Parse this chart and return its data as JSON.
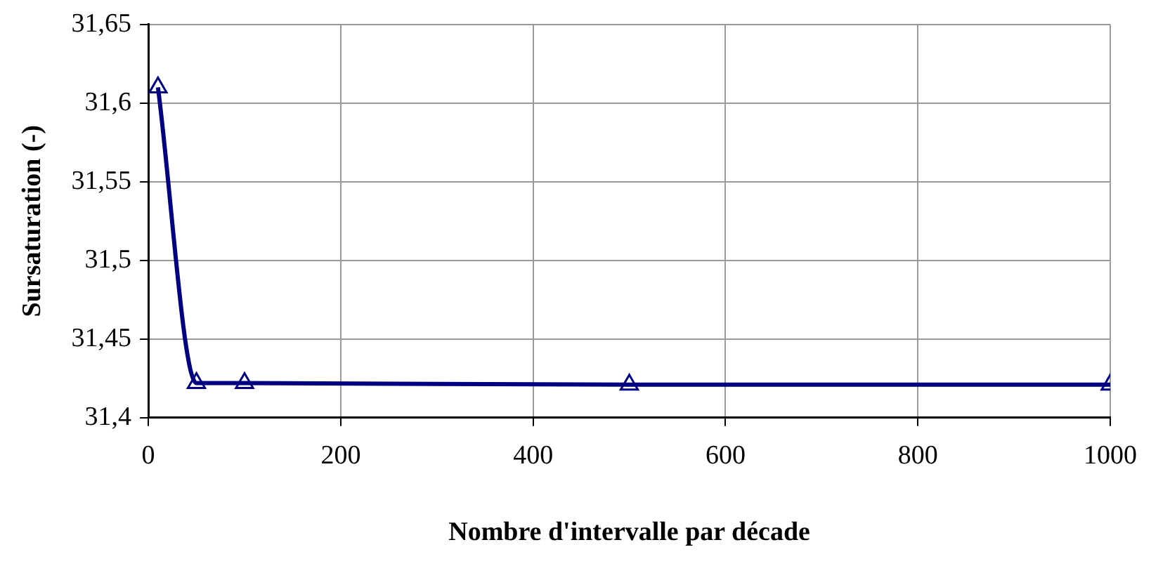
{
  "chart_data": {
    "type": "line",
    "xlabel": "Nombre d'intervalle par décade",
    "ylabel": "Sursaturation (-)",
    "x": [
      10,
      50,
      100,
      500,
      1000
    ],
    "series": [
      {
        "color": "#000080",
        "values": [
          31.61,
          31.422,
          31.422,
          31.421,
          31.421
        ]
      }
    ],
    "xlim": [
      0,
      1000
    ],
    "xticks": [
      0,
      200,
      400,
      600,
      800,
      1000
    ],
    "ylim": [
      31.4,
      31.65
    ],
    "yticks": [
      {
        "value": 31.4,
        "label": "31,4"
      },
      {
        "value": 31.45,
        "label": "31,45"
      },
      {
        "value": 31.5,
        "label": "31,5"
      },
      {
        "value": 31.55,
        "label": "31,55"
      },
      {
        "value": 31.6,
        "label": "31,6"
      },
      {
        "value": 31.65,
        "label": "31,65"
      }
    ],
    "grid": true,
    "legend": false,
    "marker": "triangle",
    "line_style": "solid"
  }
}
